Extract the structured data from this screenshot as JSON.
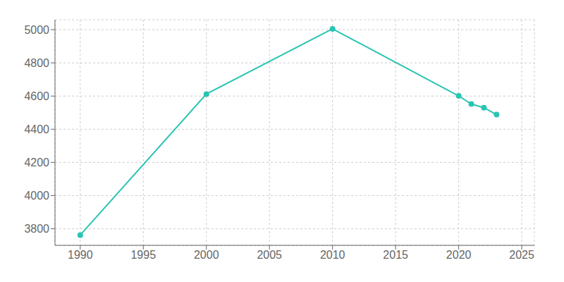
{
  "chart_data": {
    "type": "line",
    "x": [
      1990,
      2000,
      2010,
      2020,
      2021,
      2022,
      2023
    ],
    "values": [
      3762,
      4612,
      5005,
      4601,
      4552,
      4530,
      4488
    ],
    "color": "#2ac4b3",
    "marker": "circle",
    "xlim": [
      1988,
      2026
    ],
    "ylim": [
      3700,
      5060
    ],
    "xticks": [
      1990,
      1995,
      2000,
      2005,
      2010,
      2015,
      2020,
      2025
    ],
    "yticks": [
      3800,
      4000,
      4200,
      4400,
      4600,
      4800,
      5000
    ],
    "grid": true
  }
}
